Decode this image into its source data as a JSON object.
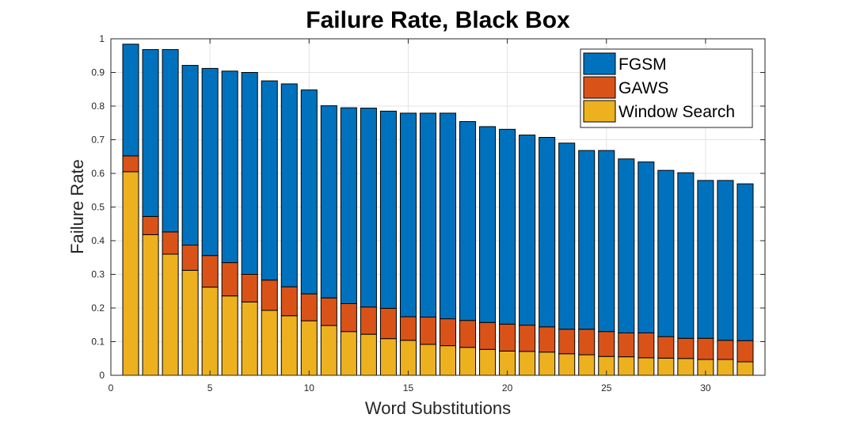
{
  "chart_data": {
    "type": "bar",
    "stacked": true,
    "title": "Failure Rate, Black Box",
    "xlabel": "Word Substitutions",
    "ylabel": "Failure Rate",
    "xlim": [
      0,
      33
    ],
    "ylim": [
      0,
      1
    ],
    "xticks": [
      0,
      5,
      10,
      15,
      20,
      25,
      30
    ],
    "yticks": [
      0,
      0.1,
      0.2,
      0.3,
      0.4,
      0.5,
      0.6,
      0.7,
      0.8,
      0.9,
      1
    ],
    "grid": true,
    "legend_position": "top-right",
    "x": [
      1,
      2,
      3,
      4,
      5,
      6,
      7,
      8,
      9,
      10,
      11,
      12,
      13,
      14,
      15,
      16,
      17,
      18,
      19,
      20,
      21,
      22,
      23,
      24,
      25,
      26,
      27,
      28,
      29,
      30,
      31,
      32
    ],
    "series": [
      {
        "name": "Window Search",
        "color": "#EDB120",
        "values": [
          0.605,
          0.418,
          0.36,
          0.312,
          0.262,
          0.236,
          0.218,
          0.193,
          0.177,
          0.162,
          0.148,
          0.13,
          0.122,
          0.109,
          0.104,
          0.092,
          0.088,
          0.083,
          0.077,
          0.072,
          0.071,
          0.069,
          0.064,
          0.061,
          0.056,
          0.055,
          0.052,
          0.051,
          0.05,
          0.047,
          0.047,
          0.04
        ]
      },
      {
        "name": "GAWS",
        "color": "#D95319",
        "values": [
          0.047,
          0.054,
          0.066,
          0.075,
          0.094,
          0.099,
          0.082,
          0.09,
          0.086,
          0.08,
          0.082,
          0.083,
          0.081,
          0.09,
          0.07,
          0.081,
          0.08,
          0.08,
          0.08,
          0.08,
          0.078,
          0.075,
          0.073,
          0.076,
          0.074,
          0.071,
          0.074,
          0.064,
          0.06,
          0.063,
          0.057,
          0.063
        ]
      },
      {
        "name": "FGSM",
        "color": "#0072BD",
        "values": [
          0.332,
          0.496,
          0.542,
          0.534,
          0.556,
          0.569,
          0.6,
          0.592,
          0.603,
          0.606,
          0.571,
          0.582,
          0.591,
          0.586,
          0.605,
          0.606,
          0.611,
          0.591,
          0.582,
          0.579,
          0.565,
          0.563,
          0.553,
          0.531,
          0.538,
          0.517,
          0.508,
          0.494,
          0.492,
          0.469,
          0.475,
          0.466
        ]
      }
    ],
    "legend_order": [
      "FGSM",
      "GAWS",
      "Window Search"
    ]
  }
}
